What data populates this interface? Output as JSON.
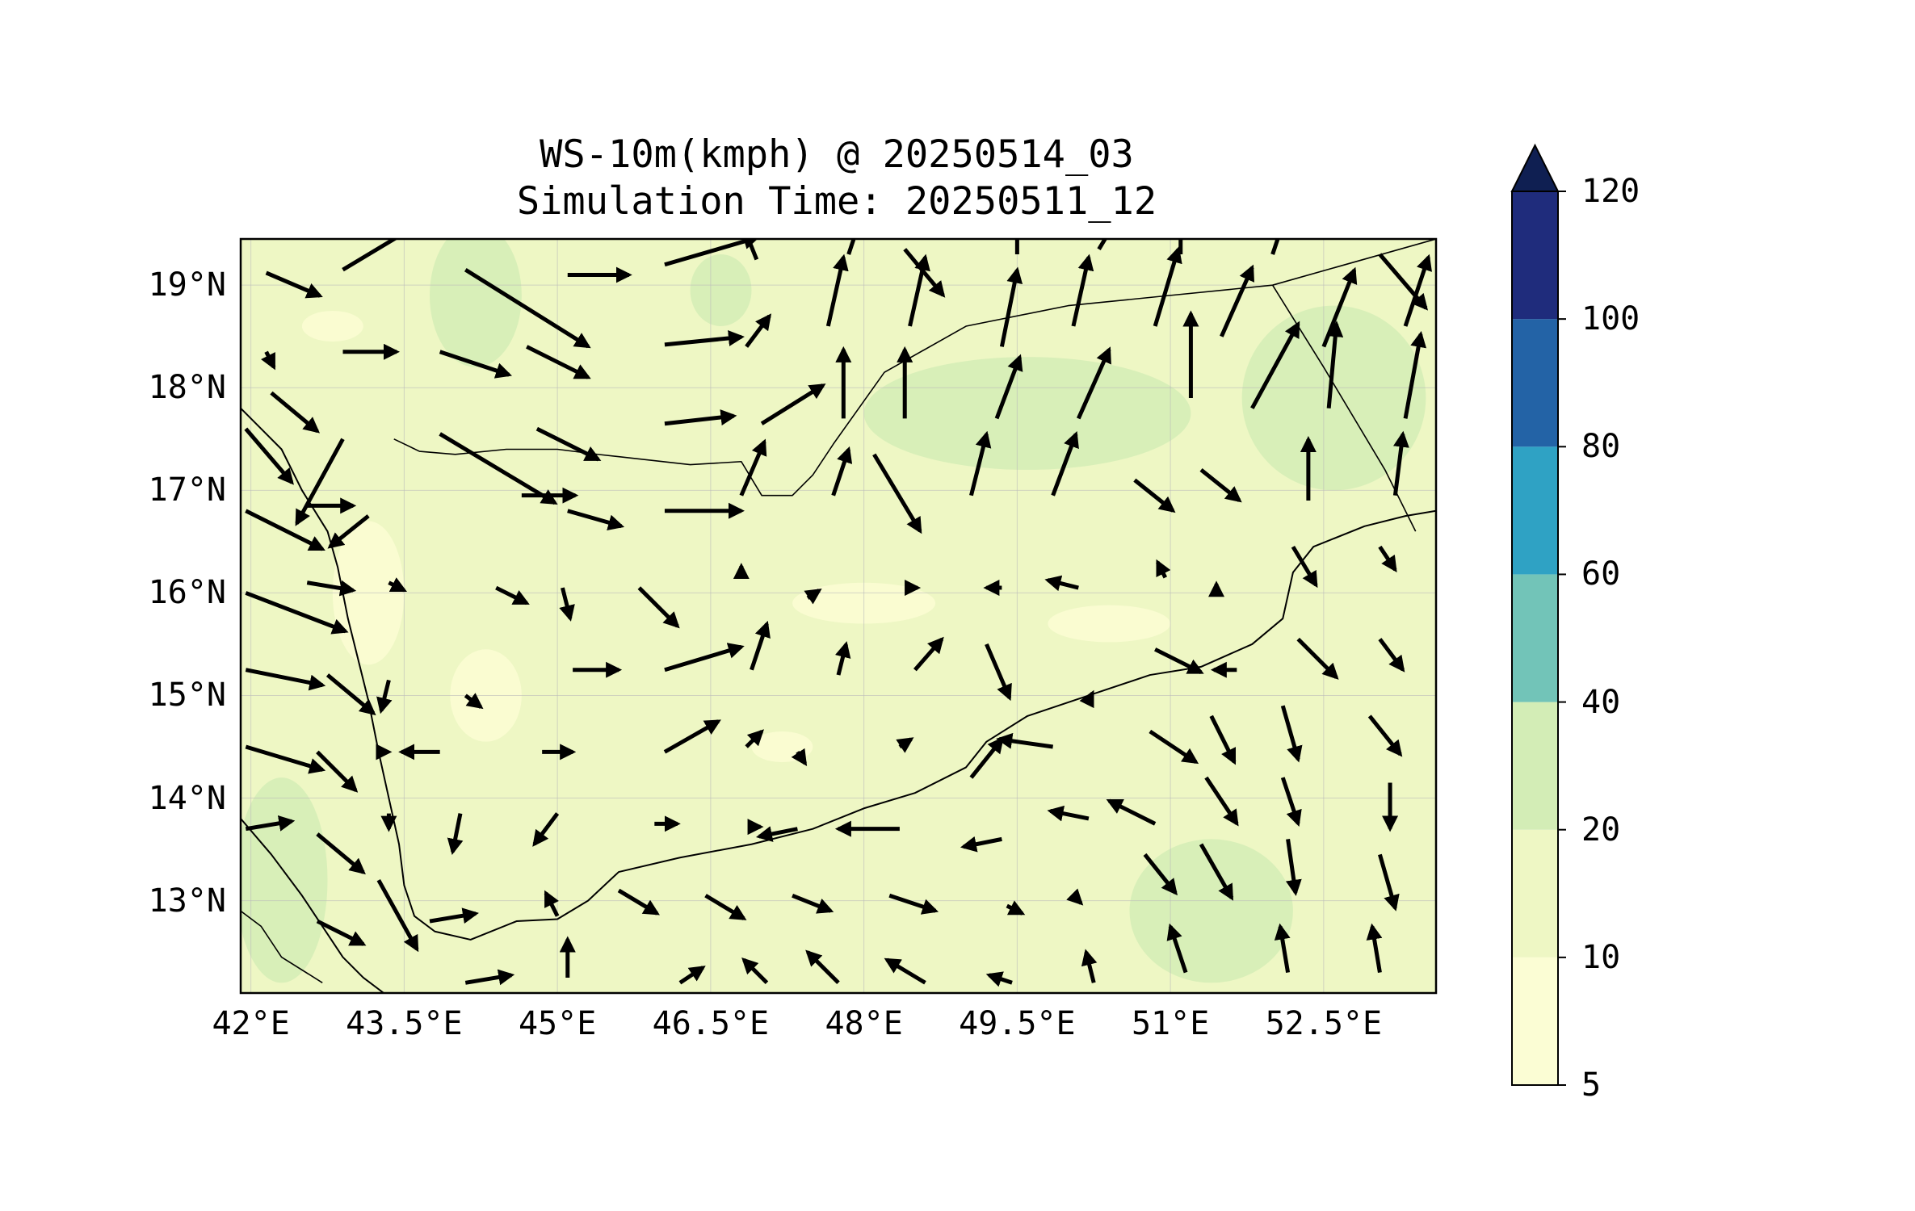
{
  "title": {
    "line1": "WS-10m(kmph) @ 20250514_03",
    "line2": "Simulation Time: 20250511_12"
  },
  "map": {
    "extent": {
      "lon_min": 41.9,
      "lon_max": 53.6,
      "lat_min": 12.1,
      "lat_max": 19.45
    },
    "lat_ticks": [
      {
        "value": 19,
        "label": "19°N"
      },
      {
        "value": 18,
        "label": "18°N"
      },
      {
        "value": 17,
        "label": "17°N"
      },
      {
        "value": 16,
        "label": "16°N"
      },
      {
        "value": 15,
        "label": "15°N"
      },
      {
        "value": 14,
        "label": "14°N"
      },
      {
        "value": 13,
        "label": "13°N"
      }
    ],
    "lon_ticks": [
      {
        "value": 42,
        "label": "42°E"
      },
      {
        "value": 43.5,
        "label": "43.5°E"
      },
      {
        "value": 45,
        "label": "45°E"
      },
      {
        "value": 46.5,
        "label": "46.5°E"
      },
      {
        "value": 48,
        "label": "48°E"
      },
      {
        "value": 49.5,
        "label": "49.5°E"
      },
      {
        "value": 51,
        "label": "51°E"
      },
      {
        "value": 52.5,
        "label": "52.5°E"
      }
    ],
    "gridlines": true,
    "background_color": "#eef7c4"
  },
  "colorbar": {
    "levels": [
      5,
      10,
      20,
      40,
      60,
      80,
      100,
      120
    ],
    "labels": [
      "5",
      "10",
      "20",
      "40",
      "60",
      "80",
      "100",
      "120"
    ],
    "colors": [
      "#fbfdd4",
      "#eef7c4",
      "#d3edb6",
      "#72c4b8",
      "#2fa2c4",
      "#2363a6",
      "#1f2c7c"
    ],
    "extend_color": "#0f1f52",
    "extend": "max"
  },
  "coastline": [
    [
      41.9,
      17.8
    ],
    [
      42.1,
      17.6
    ],
    [
      42.3,
      17.4
    ],
    [
      42.5,
      17.0
    ],
    [
      42.75,
      16.6
    ],
    [
      42.85,
      16.25
    ],
    [
      42.95,
      15.75
    ],
    [
      43.05,
      15.35
    ],
    [
      43.15,
      14.95
    ],
    [
      43.25,
      14.45
    ],
    [
      43.35,
      14.0
    ],
    [
      43.45,
      13.55
    ],
    [
      43.5,
      13.15
    ],
    [
      43.6,
      12.85
    ],
    [
      43.8,
      12.7
    ],
    [
      44.15,
      12.62
    ],
    [
      44.6,
      12.8
    ],
    [
      45.0,
      12.82
    ],
    [
      45.3,
      13.0
    ],
    [
      45.6,
      13.28
    ],
    [
      46.2,
      13.42
    ],
    [
      46.9,
      13.55
    ],
    [
      47.5,
      13.7
    ],
    [
      48.0,
      13.9
    ],
    [
      48.5,
      14.05
    ],
    [
      49.0,
      14.3
    ],
    [
      49.2,
      14.55
    ],
    [
      49.6,
      14.8
    ],
    [
      50.2,
      15.0
    ],
    [
      50.8,
      15.2
    ],
    [
      51.3,
      15.28
    ],
    [
      51.8,
      15.5
    ],
    [
      52.1,
      15.75
    ],
    [
      52.2,
      16.2
    ],
    [
      52.4,
      16.45
    ],
    [
      52.9,
      16.65
    ],
    [
      53.3,
      16.75
    ],
    [
      53.6,
      16.8
    ]
  ],
  "african_coast": [
    [
      41.9,
      13.8
    ],
    [
      42.2,
      13.45
    ],
    [
      42.5,
      13.05
    ],
    [
      42.7,
      12.75
    ],
    [
      42.9,
      12.45
    ],
    [
      43.1,
      12.25
    ],
    [
      43.3,
      12.1
    ]
  ],
  "borders": [
    [
      [
        43.4,
        17.5
      ],
      [
        43.65,
        17.38
      ],
      [
        44.0,
        17.35
      ],
      [
        44.5,
        17.4
      ],
      [
        45.0,
        17.4
      ],
      [
        45.4,
        17.35
      ],
      [
        46.3,
        17.25
      ],
      [
        46.8,
        17.28
      ],
      [
        47.0,
        16.95
      ],
      [
        47.3,
        16.95
      ],
      [
        47.5,
        17.15
      ],
      [
        47.7,
        17.45
      ],
      [
        48.2,
        18.15
      ],
      [
        49.0,
        18.6
      ],
      [
        50.0,
        18.8
      ],
      [
        51.0,
        18.9
      ],
      [
        52.0,
        19.0
      ],
      [
        53.6,
        19.45
      ]
    ],
    [
      [
        52.0,
        19.0
      ],
      [
        52.5,
        18.2
      ],
      [
        53.1,
        17.2
      ],
      [
        53.4,
        16.6
      ]
    ],
    [
      [
        42.7,
        12.2
      ],
      [
        42.3,
        12.45
      ],
      [
        42.1,
        12.75
      ],
      [
        41.9,
        12.9
      ]
    ]
  ],
  "wind_vectors": [
    [
      42.15,
      19.12,
      0.7,
      -0.3
    ],
    [
      42.9,
      19.15,
      1.0,
      0.6
    ],
    [
      44.1,
      19.15,
      1.6,
      -1.0
    ],
    [
      45.1,
      19.1,
      0.8,
      0.0
    ],
    [
      46.05,
      19.2,
      1.2,
      0.35
    ],
    [
      46.95,
      19.25,
      -0.2,
      0.5
    ],
    [
      47.85,
      19.3,
      0.2,
      0.6
    ],
    [
      48.4,
      19.35,
      0.5,
      -0.6
    ],
    [
      49.5,
      19.3,
      0.0,
      0.5
    ],
    [
      50.3,
      19.35,
      0.3,
      0.5
    ],
    [
      51.1,
      19.3,
      0.0,
      0.5
    ],
    [
      52.0,
      19.3,
      0.2,
      0.6
    ],
    [
      53.05,
      19.3,
      0.6,
      -0.7
    ],
    [
      42.15,
      18.35,
      0.1,
      -0.2
    ],
    [
      42.9,
      18.35,
      0.7,
      0.0
    ],
    [
      43.85,
      18.35,
      0.9,
      -0.3
    ],
    [
      44.7,
      18.4,
      0.8,
      -0.4
    ],
    [
      46.05,
      18.42,
      1.0,
      0.1
    ],
    [
      46.85,
      18.4,
      0.3,
      0.4
    ],
    [
      47.65,
      18.6,
      0.2,
      0.9
    ],
    [
      48.45,
      18.6,
      0.2,
      0.9
    ],
    [
      49.35,
      18.4,
      0.2,
      1.0
    ],
    [
      50.05,
      18.6,
      0.2,
      0.9
    ],
    [
      50.85,
      18.6,
      0.3,
      1.0
    ],
    [
      51.5,
      18.5,
      0.4,
      0.9
    ],
    [
      52.5,
      18.4,
      0.4,
      1.0
    ],
    [
      53.3,
      18.6,
      0.3,
      0.9
    ],
    [
      42.2,
      17.95,
      0.6,
      -0.5
    ],
    [
      43.85,
      17.55,
      1.5,
      -0.9
    ],
    [
      44.8,
      17.6,
      0.8,
      -0.4
    ],
    [
      46.05,
      17.65,
      0.9,
      0.1
    ],
    [
      47.0,
      17.65,
      0.8,
      0.5
    ],
    [
      47.8,
      17.7,
      0.0,
      0.9
    ],
    [
      48.4,
      17.7,
      0.0,
      0.9
    ],
    [
      49.3,
      17.7,
      0.3,
      0.8
    ],
    [
      50.1,
      17.7,
      0.4,
      0.9
    ],
    [
      51.2,
      17.9,
      0.0,
      1.1
    ],
    [
      51.8,
      17.8,
      0.6,
      1.1
    ],
    [
      52.55,
      17.8,
      0.1,
      1.1
    ],
    [
      53.3,
      17.7,
      0.2,
      1.1
    ],
    [
      41.95,
      17.6,
      0.6,
      -0.7
    ],
    [
      42.9,
      17.5,
      -0.6,
      -1.1
    ],
    [
      42.55,
      16.85,
      0.6,
      0.0
    ],
    [
      43.15,
      16.75,
      -0.5,
      -0.4
    ],
    [
      44.65,
      16.95,
      0.7,
      0.0
    ],
    [
      45.1,
      16.8,
      0.7,
      -0.2
    ],
    [
      46.05,
      16.8,
      1.0,
      0.0
    ],
    [
      46.8,
      16.95,
      0.3,
      0.7
    ],
    [
      47.7,
      16.95,
      0.2,
      0.6
    ],
    [
      48.1,
      17.35,
      0.6,
      -1.0
    ],
    [
      49.05,
      16.95,
      0.2,
      0.8
    ],
    [
      49.85,
      16.95,
      0.3,
      0.8
    ],
    [
      50.65,
      17.1,
      0.5,
      -0.4
    ],
    [
      51.3,
      17.2,
      0.5,
      -0.4
    ],
    [
      52.35,
      16.9,
      0.0,
      0.8
    ],
    [
      53.2,
      16.95,
      0.1,
      0.8
    ],
    [
      41.95,
      16.8,
      1.0,
      -0.5
    ],
    [
      42.55,
      16.1,
      0.6,
      -0.1
    ],
    [
      43.35,
      16.1,
      0.2,
      -0.1
    ],
    [
      44.4,
      16.05,
      0.4,
      -0.2
    ],
    [
      45.05,
      16.05,
      0.1,
      -0.4
    ],
    [
      45.8,
      16.05,
      0.5,
      -0.5
    ],
    [
      46.8,
      16.15,
      0.0,
      0.15
    ],
    [
      47.45,
      15.95,
      0.15,
      0.1
    ],
    [
      48.45,
      16.05,
      0.1,
      0.0
    ],
    [
      49.35,
      16.05,
      -0.2,
      0.0
    ],
    [
      50.1,
      16.05,
      -0.4,
      0.1
    ],
    [
      50.95,
      16.15,
      -0.1,
      0.2
    ],
    [
      51.45,
      16.05,
      0.0,
      0.05
    ],
    [
      52.2,
      16.45,
      0.3,
      -0.5
    ],
    [
      53.05,
      16.45,
      0.2,
      -0.3
    ],
    [
      41.95,
      16.0,
      1.3,
      -0.5
    ],
    [
      42.75,
      15.2,
      0.6,
      -0.5
    ],
    [
      43.35,
      15.15,
      -0.1,
      -0.4
    ],
    [
      44.1,
      15.0,
      0.2,
      -0.15
    ],
    [
      45.15,
      15.25,
      0.6,
      0.0
    ],
    [
      46.05,
      15.25,
      1.0,
      0.3
    ],
    [
      46.9,
      15.25,
      0.2,
      0.6
    ],
    [
      47.75,
      15.2,
      0.1,
      0.4
    ],
    [
      48.5,
      15.25,
      0.35,
      0.4
    ],
    [
      49.2,
      15.5,
      0.3,
      -0.7
    ],
    [
      50.2,
      14.95,
      0.05,
      0.1
    ],
    [
      50.85,
      15.45,
      0.6,
      -0.3
    ],
    [
      51.65,
      15.25,
      -0.3,
      0.0
    ],
    [
      52.25,
      15.55,
      0.5,
      -0.5
    ],
    [
      53.05,
      15.55,
      0.3,
      -0.4
    ],
    [
      41.95,
      15.25,
      1.0,
      -0.2
    ],
    [
      43.35,
      14.45,
      0.0,
      0.0
    ],
    [
      43.85,
      14.45,
      -0.5,
      0.0
    ],
    [
      44.85,
      14.45,
      0.4,
      0.0
    ],
    [
      46.05,
      14.45,
      0.7,
      0.4
    ],
    [
      46.85,
      14.5,
      0.2,
      0.2
    ],
    [
      47.35,
      14.45,
      0.1,
      -0.15
    ],
    [
      48.35,
      14.5,
      0.15,
      0.1
    ],
    [
      49.05,
      14.2,
      0.4,
      0.5
    ],
    [
      49.85,
      14.5,
      -0.7,
      0.1
    ],
    [
      50.8,
      14.65,
      0.6,
      -0.4
    ],
    [
      51.4,
      14.8,
      0.3,
      -0.6
    ],
    [
      52.1,
      14.9,
      0.2,
      -0.7
    ],
    [
      52.95,
      14.8,
      0.4,
      -0.5
    ],
    [
      41.95,
      14.5,
      1.0,
      -0.3
    ],
    [
      42.65,
      14.45,
      0.5,
      -0.5
    ],
    [
      43.35,
      13.85,
      0.0,
      -0.2
    ],
    [
      44.05,
      13.85,
      -0.1,
      -0.5
    ],
    [
      45.0,
      13.85,
      -0.3,
      -0.4
    ],
    [
      45.95,
      13.75,
      0.3,
      0.0
    ],
    [
      46.95,
      13.72,
      0.05,
      0.0
    ],
    [
      47.35,
      13.7,
      -0.5,
      -0.1
    ],
    [
      48.35,
      13.7,
      -0.8,
      0.0
    ],
    [
      49.35,
      13.6,
      -0.5,
      -0.1
    ],
    [
      50.2,
      13.8,
      -0.5,
      0.1
    ],
    [
      50.85,
      13.75,
      -0.6,
      0.3
    ],
    [
      51.35,
      14.2,
      0.4,
      -0.6
    ],
    [
      52.1,
      14.2,
      0.2,
      -0.6
    ],
    [
      53.15,
      14.15,
      0.0,
      -0.6
    ],
    [
      41.95,
      13.7,
      0.6,
      0.1
    ],
    [
      42.65,
      13.65,
      0.6,
      -0.5
    ],
    [
      43.25,
      13.2,
      0.5,
      -0.9
    ],
    [
      43.75,
      12.8,
      0.6,
      0.1
    ],
    [
      45.0,
      12.85,
      -0.15,
      0.3
    ],
    [
      45.6,
      13.1,
      0.5,
      -0.3
    ],
    [
      46.45,
      13.05,
      0.5,
      -0.3
    ],
    [
      47.3,
      13.05,
      0.5,
      -0.2
    ],
    [
      48.25,
      13.05,
      0.6,
      -0.2
    ],
    [
      49.4,
      12.95,
      0.2,
      -0.1
    ],
    [
      50.05,
      13.05,
      0.1,
      -0.1
    ],
    [
      50.75,
      13.45,
      0.4,
      -0.5
    ],
    [
      51.3,
      13.55,
      0.4,
      -0.7
    ],
    [
      52.15,
      13.6,
      0.1,
      -0.7
    ],
    [
      53.05,
      13.45,
      0.2,
      -0.7
    ],
    [
      42.65,
      12.8,
      0.6,
      -0.3
    ],
    [
      44.1,
      12.2,
      0.6,
      0.1
    ],
    [
      45.1,
      12.25,
      0.0,
      0.5
    ],
    [
      46.2,
      12.2,
      0.3,
      0.2
    ],
    [
      47.05,
      12.2,
      -0.3,
      0.3
    ],
    [
      47.75,
      12.2,
      -0.4,
      0.4
    ],
    [
      48.6,
      12.2,
      -0.5,
      0.3
    ],
    [
      49.45,
      12.2,
      -0.3,
      0.1
    ],
    [
      50.25,
      12.2,
      -0.1,
      0.4
    ],
    [
      51.15,
      12.3,
      -0.2,
      0.6
    ],
    [
      52.15,
      12.3,
      -0.1,
      0.6
    ],
    [
      53.05,
      12.3,
      -0.1,
      0.6
    ]
  ]
}
